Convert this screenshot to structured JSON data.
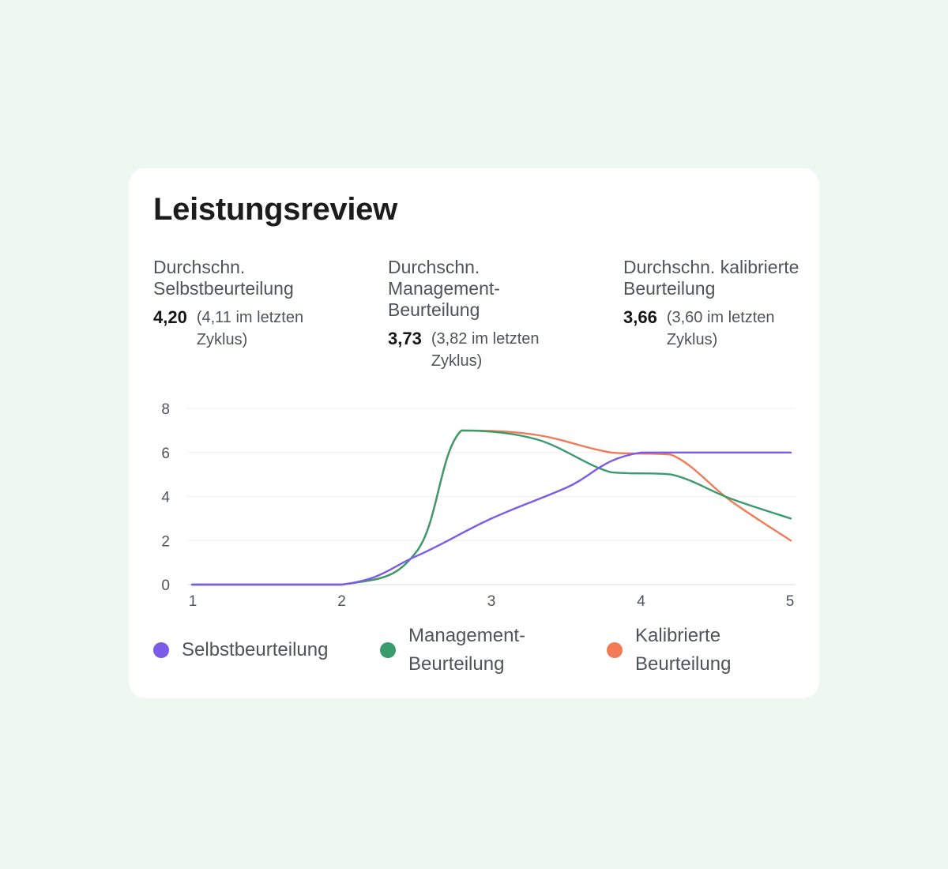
{
  "card": {
    "title": "Leistungsreview",
    "kpis": [
      {
        "label": "Durchschn. Selbstbeurteilung",
        "value": "4,20",
        "previous": "(4,11 im letzten Zyklus)"
      },
      {
        "label": "Durchschn. Management-Beurteilung",
        "value": "3,73",
        "previous": "(3,82 im letzten Zyklus)"
      },
      {
        "label": "Durchschn. kalibrierte Beurteilung",
        "value": "3,66",
        "previous": "(3,60 im letzten Zyklus)"
      }
    ]
  },
  "chart_data": {
    "type": "line",
    "x": [
      1,
      2,
      3,
      4,
      5
    ],
    "x_ticks": [
      "1",
      "2",
      "3",
      "4",
      "5"
    ],
    "y_ticks": [
      "0",
      "2",
      "4",
      "6",
      "8"
    ],
    "ylim": [
      0,
      8
    ],
    "grid": true,
    "curve": "smooth",
    "legend_position": "bottom",
    "series": [
      {
        "name": "Selbstbeurteilung",
        "color": "#7b5ce8",
        "points": [
          [
            1,
            0
          ],
          [
            2,
            0
          ],
          [
            2.5,
            1.3
          ],
          [
            3,
            3
          ],
          [
            3.5,
            4.4
          ],
          [
            4,
            6
          ],
          [
            5,
            6
          ]
        ]
      },
      {
        "name": "Management-Beurteilung",
        "color": "#3a9b6d",
        "points": [
          [
            1,
            0
          ],
          [
            2,
            0
          ],
          [
            2.5,
            1.5
          ],
          [
            2.8,
            7
          ],
          [
            3.3,
            6.6
          ],
          [
            3.8,
            5.1
          ],
          [
            4.2,
            5
          ],
          [
            4.6,
            3.9
          ],
          [
            5,
            3
          ]
        ]
      },
      {
        "name": "Kalibrierte Beurteilung",
        "color": "#f27a57",
        "points": [
          [
            1,
            0
          ],
          [
            2,
            0
          ],
          [
            2.5,
            1.5
          ],
          [
            2.8,
            7
          ],
          [
            3.3,
            6.8
          ],
          [
            3.8,
            6
          ],
          [
            4.2,
            5.9
          ],
          [
            4.6,
            3.8
          ],
          [
            5,
            2
          ]
        ]
      }
    ],
    "legend": [
      {
        "label": "Selbstbeurteilung",
        "color": "#7b5ce8"
      },
      {
        "label": "Management-Beurteilung",
        "color": "#3a9b6d"
      },
      {
        "label": "Kalibrierte Beurteilung",
        "color": "#f27a57"
      }
    ]
  }
}
